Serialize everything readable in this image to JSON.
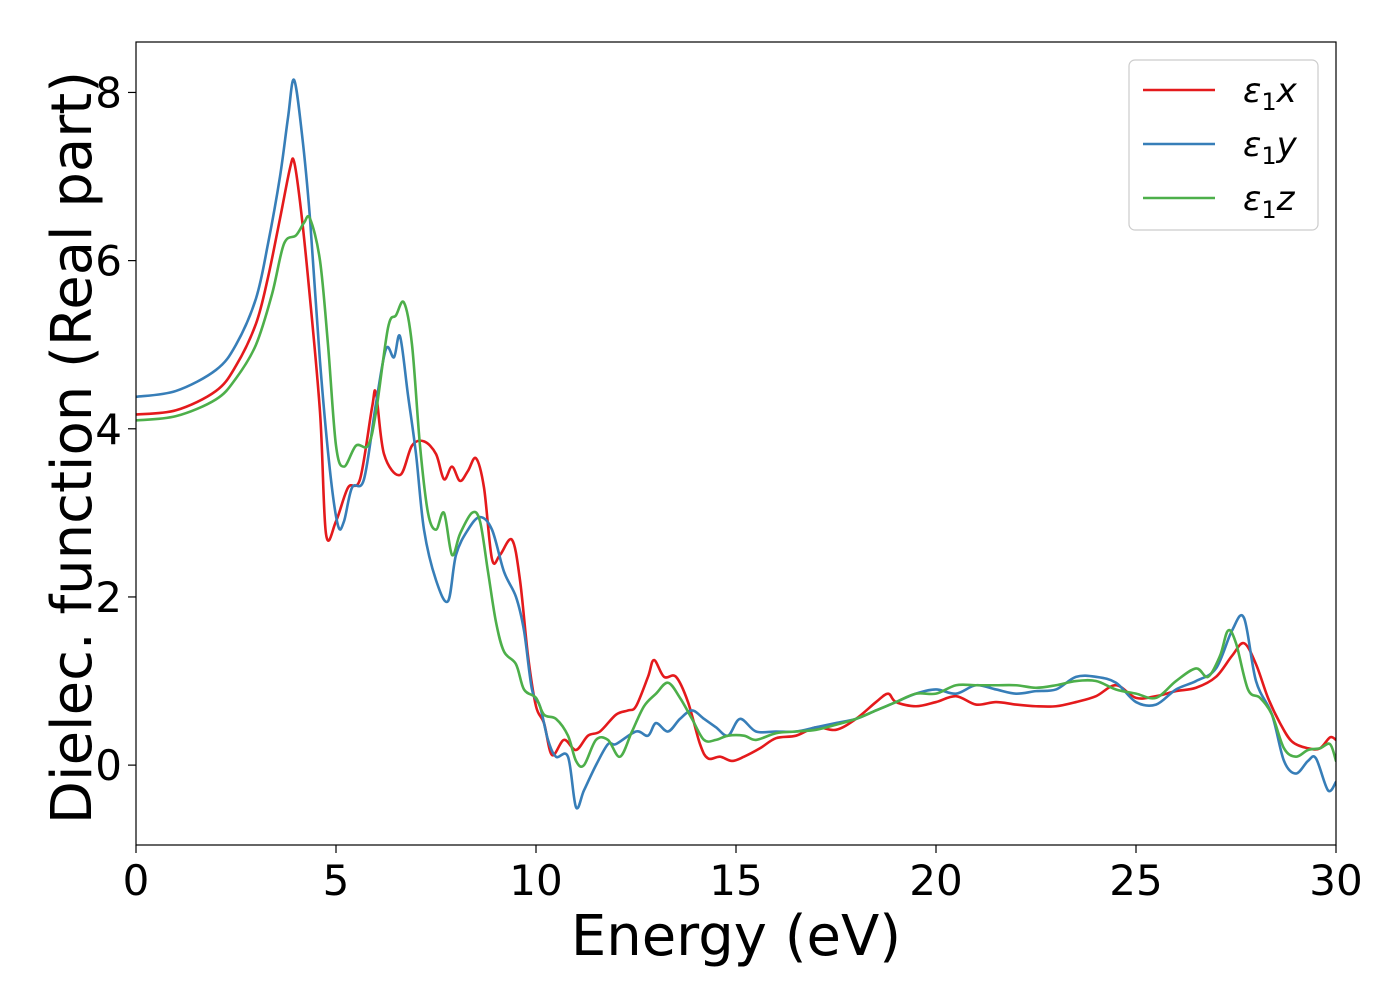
{
  "chart_data": {
    "type": "line",
    "title": "",
    "xlabel": "Energy (eV)",
    "ylabel": "Dielec. function (Real part)",
    "xlim": [
      0,
      30
    ],
    "ylim": [
      -0.95,
      8.6
    ],
    "xticks": [
      0,
      5,
      10,
      15,
      20,
      25,
      30
    ],
    "yticks": [
      0,
      2,
      4,
      6,
      8
    ],
    "xtick_labels": [
      "0",
      "5",
      "10",
      "15",
      "20",
      "25",
      "30"
    ],
    "ytick_labels": [
      "0",
      "2",
      "4",
      "6",
      "8"
    ],
    "grid": false,
    "legend_position": "top-right",
    "series": [
      {
        "name": "ε₁x",
        "legend_main": "ε",
        "legend_sub": "1",
        "legend_tail": "x",
        "color": "#e41a1c",
        "points": [
          [
            0,
            4.17
          ],
          [
            1,
            4.22
          ],
          [
            2,
            4.45
          ],
          [
            2.5,
            4.75
          ],
          [
            3,
            5.25
          ],
          [
            3.3,
            5.8
          ],
          [
            3.6,
            6.5
          ],
          [
            3.85,
            7.1
          ],
          [
            3.95,
            7.18
          ],
          [
            4.1,
            6.7
          ],
          [
            4.3,
            5.8
          ],
          [
            4.6,
            4.2
          ],
          [
            4.75,
            2.75
          ],
          [
            5.0,
            2.9
          ],
          [
            5.3,
            3.3
          ],
          [
            5.6,
            3.4
          ],
          [
            5.9,
            4.25
          ],
          [
            6.0,
            4.42
          ],
          [
            6.2,
            3.7
          ],
          [
            6.6,
            3.45
          ],
          [
            6.9,
            3.8
          ],
          [
            7.2,
            3.85
          ],
          [
            7.5,
            3.7
          ],
          [
            7.7,
            3.4
          ],
          [
            7.9,
            3.55
          ],
          [
            8.1,
            3.38
          ],
          [
            8.3,
            3.5
          ],
          [
            8.5,
            3.65
          ],
          [
            8.7,
            3.3
          ],
          [
            8.9,
            2.45
          ],
          [
            9.1,
            2.5
          ],
          [
            9.4,
            2.68
          ],
          [
            9.6,
            2.2
          ],
          [
            9.8,
            1.3
          ],
          [
            10.0,
            0.7
          ],
          [
            10.2,
            0.5
          ],
          [
            10.4,
            0.12
          ],
          [
            10.7,
            0.3
          ],
          [
            11.0,
            0.18
          ],
          [
            11.3,
            0.35
          ],
          [
            11.6,
            0.4
          ],
          [
            12.0,
            0.6
          ],
          [
            12.3,
            0.65
          ],
          [
            12.5,
            0.7
          ],
          [
            12.8,
            1.05
          ],
          [
            12.95,
            1.25
          ],
          [
            13.2,
            1.05
          ],
          [
            13.5,
            1.05
          ],
          [
            13.8,
            0.75
          ],
          [
            14.1,
            0.25
          ],
          [
            14.3,
            0.08
          ],
          [
            14.6,
            0.1
          ],
          [
            14.9,
            0.05
          ],
          [
            15.2,
            0.1
          ],
          [
            15.6,
            0.2
          ],
          [
            16.0,
            0.32
          ],
          [
            16.5,
            0.35
          ],
          [
            17.0,
            0.45
          ],
          [
            17.5,
            0.42
          ],
          [
            18.0,
            0.55
          ],
          [
            18.5,
            0.75
          ],
          [
            18.8,
            0.85
          ],
          [
            19.0,
            0.75
          ],
          [
            19.5,
            0.7
          ],
          [
            20.0,
            0.75
          ],
          [
            20.5,
            0.82
          ],
          [
            21.0,
            0.72
          ],
          [
            21.5,
            0.75
          ],
          [
            22.0,
            0.72
          ],
          [
            22.5,
            0.7
          ],
          [
            23.0,
            0.7
          ],
          [
            23.5,
            0.75
          ],
          [
            24.0,
            0.82
          ],
          [
            24.5,
            0.95
          ],
          [
            25.0,
            0.8
          ],
          [
            25.5,
            0.82
          ],
          [
            26.0,
            0.88
          ],
          [
            26.5,
            0.92
          ],
          [
            27.0,
            1.05
          ],
          [
            27.4,
            1.3
          ],
          [
            27.7,
            1.45
          ],
          [
            28.0,
            1.2
          ],
          [
            28.3,
            0.8
          ],
          [
            28.6,
            0.5
          ],
          [
            28.9,
            0.28
          ],
          [
            29.3,
            0.2
          ],
          [
            29.6,
            0.2
          ],
          [
            29.85,
            0.33
          ],
          [
            30,
            0.3
          ]
        ]
      },
      {
        "name": "ε₁y",
        "legend_main": "ε",
        "legend_sub": "1",
        "legend_tail": "y",
        "color": "#377eb8",
        "points": [
          [
            0,
            4.38
          ],
          [
            1,
            4.45
          ],
          [
            2,
            4.7
          ],
          [
            2.5,
            5.0
          ],
          [
            3,
            5.55
          ],
          [
            3.3,
            6.2
          ],
          [
            3.6,
            7.0
          ],
          [
            3.8,
            7.7
          ],
          [
            3.95,
            8.15
          ],
          [
            4.15,
            7.5
          ],
          [
            4.35,
            6.5
          ],
          [
            4.6,
            4.8
          ],
          [
            4.85,
            3.5
          ],
          [
            5.05,
            2.85
          ],
          [
            5.2,
            2.9
          ],
          [
            5.4,
            3.3
          ],
          [
            5.7,
            3.4
          ],
          [
            6.0,
            4.3
          ],
          [
            6.25,
            4.95
          ],
          [
            6.45,
            4.85
          ],
          [
            6.6,
            5.1
          ],
          [
            6.8,
            4.4
          ],
          [
            7.0,
            3.7
          ],
          [
            7.2,
            2.8
          ],
          [
            7.5,
            2.2
          ],
          [
            7.8,
            1.95
          ],
          [
            8.0,
            2.5
          ],
          [
            8.3,
            2.8
          ],
          [
            8.6,
            2.95
          ],
          [
            8.9,
            2.8
          ],
          [
            9.2,
            2.3
          ],
          [
            9.5,
            2.0
          ],
          [
            9.7,
            1.6
          ],
          [
            9.9,
            0.9
          ],
          [
            10.1,
            0.7
          ],
          [
            10.3,
            0.3
          ],
          [
            10.5,
            0.1
          ],
          [
            10.8,
            0.1
          ],
          [
            11.0,
            -0.5
          ],
          [
            11.2,
            -0.3
          ],
          [
            11.5,
            0.0
          ],
          [
            11.8,
            0.25
          ],
          [
            12.0,
            0.25
          ],
          [
            12.5,
            0.4
          ],
          [
            12.8,
            0.35
          ],
          [
            13.0,
            0.5
          ],
          [
            13.3,
            0.4
          ],
          [
            13.6,
            0.55
          ],
          [
            13.9,
            0.65
          ],
          [
            14.2,
            0.55
          ],
          [
            14.5,
            0.45
          ],
          [
            14.8,
            0.35
          ],
          [
            15.1,
            0.55
          ],
          [
            15.5,
            0.4
          ],
          [
            16.0,
            0.4
          ],
          [
            16.5,
            0.4
          ],
          [
            17.0,
            0.45
          ],
          [
            17.5,
            0.5
          ],
          [
            18.0,
            0.55
          ],
          [
            18.5,
            0.65
          ],
          [
            19.0,
            0.75
          ],
          [
            19.5,
            0.85
          ],
          [
            20.0,
            0.9
          ],
          [
            20.5,
            0.85
          ],
          [
            21.0,
            0.95
          ],
          [
            21.5,
            0.9
          ],
          [
            22.0,
            0.85
          ],
          [
            22.5,
            0.88
          ],
          [
            23.0,
            0.9
          ],
          [
            23.5,
            1.05
          ],
          [
            24.0,
            1.05
          ],
          [
            24.5,
            0.98
          ],
          [
            25.0,
            0.75
          ],
          [
            25.5,
            0.72
          ],
          [
            26.0,
            0.9
          ],
          [
            26.5,
            1.0
          ],
          [
            27.0,
            1.15
          ],
          [
            27.4,
            1.6
          ],
          [
            27.7,
            1.75
          ],
          [
            28.0,
            1.0
          ],
          [
            28.4,
            0.6
          ],
          [
            28.7,
            0.05
          ],
          [
            29.0,
            -0.1
          ],
          [
            29.3,
            0.05
          ],
          [
            29.5,
            0.08
          ],
          [
            29.8,
            -0.3
          ],
          [
            30,
            -0.2
          ]
        ]
      },
      {
        "name": "ε₁z",
        "legend_main": "ε",
        "legend_sub": "1",
        "legend_tail": "z",
        "color": "#4daf4a",
        "points": [
          [
            0,
            4.1
          ],
          [
            1,
            4.15
          ],
          [
            2,
            4.35
          ],
          [
            2.5,
            4.6
          ],
          [
            3,
            5.0
          ],
          [
            3.4,
            5.6
          ],
          [
            3.7,
            6.2
          ],
          [
            4.0,
            6.3
          ],
          [
            4.2,
            6.45
          ],
          [
            4.35,
            6.5
          ],
          [
            4.6,
            6.0
          ],
          [
            4.8,
            5.0
          ],
          [
            5.0,
            3.8
          ],
          [
            5.2,
            3.55
          ],
          [
            5.5,
            3.8
          ],
          [
            5.8,
            3.8
          ],
          [
            6.0,
            4.2
          ],
          [
            6.3,
            5.2
          ],
          [
            6.5,
            5.35
          ],
          [
            6.7,
            5.5
          ],
          [
            6.9,
            5.0
          ],
          [
            7.1,
            3.8
          ],
          [
            7.3,
            3.0
          ],
          [
            7.5,
            2.8
          ],
          [
            7.7,
            3.0
          ],
          [
            7.9,
            2.5
          ],
          [
            8.1,
            2.75
          ],
          [
            8.4,
            3.0
          ],
          [
            8.6,
            2.9
          ],
          [
            8.8,
            2.3
          ],
          [
            9.0,
            1.7
          ],
          [
            9.2,
            1.35
          ],
          [
            9.5,
            1.2
          ],
          [
            9.7,
            0.9
          ],
          [
            10.0,
            0.8
          ],
          [
            10.2,
            0.6
          ],
          [
            10.5,
            0.55
          ],
          [
            10.8,
            0.35
          ],
          [
            11.0,
            0.05
          ],
          [
            11.2,
            0.0
          ],
          [
            11.5,
            0.3
          ],
          [
            11.8,
            0.3
          ],
          [
            12.1,
            0.1
          ],
          [
            12.4,
            0.4
          ],
          [
            12.7,
            0.7
          ],
          [
            13.0,
            0.85
          ],
          [
            13.3,
            0.98
          ],
          [
            13.6,
            0.8
          ],
          [
            13.9,
            0.55
          ],
          [
            14.2,
            0.3
          ],
          [
            14.5,
            0.3
          ],
          [
            14.8,
            0.35
          ],
          [
            15.2,
            0.35
          ],
          [
            15.5,
            0.3
          ],
          [
            16.0,
            0.38
          ],
          [
            16.5,
            0.4
          ],
          [
            17.0,
            0.42
          ],
          [
            17.5,
            0.48
          ],
          [
            18.0,
            0.55
          ],
          [
            18.5,
            0.65
          ],
          [
            19.0,
            0.75
          ],
          [
            19.5,
            0.85
          ],
          [
            20.0,
            0.85
          ],
          [
            20.5,
            0.95
          ],
          [
            21.0,
            0.95
          ],
          [
            21.5,
            0.95
          ],
          [
            22.0,
            0.95
          ],
          [
            22.5,
            0.92
          ],
          [
            23.0,
            0.95
          ],
          [
            23.5,
            1.0
          ],
          [
            24.0,
            1.0
          ],
          [
            24.5,
            0.9
          ],
          [
            25.0,
            0.85
          ],
          [
            25.5,
            0.8
          ],
          [
            26.0,
            1.0
          ],
          [
            26.5,
            1.15
          ],
          [
            26.8,
            1.05
          ],
          [
            27.1,
            1.3
          ],
          [
            27.3,
            1.6
          ],
          [
            27.5,
            1.45
          ],
          [
            27.8,
            0.9
          ],
          [
            28.1,
            0.8
          ],
          [
            28.4,
            0.6
          ],
          [
            28.7,
            0.2
          ],
          [
            29.0,
            0.1
          ],
          [
            29.3,
            0.18
          ],
          [
            29.6,
            0.2
          ],
          [
            29.85,
            0.25
          ],
          [
            30,
            0.05
          ]
        ]
      }
    ]
  }
}
